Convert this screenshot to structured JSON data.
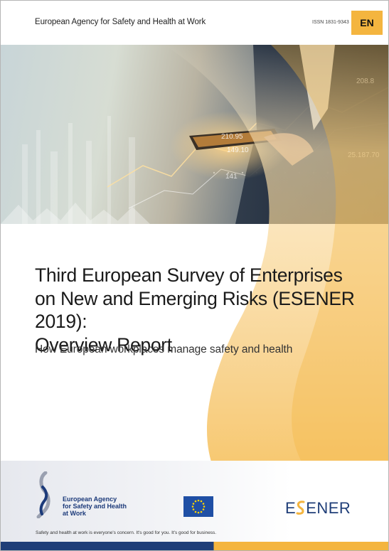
{
  "header": {
    "agency": "European Agency for Safety and Health at Work",
    "issn": "ISSN 1831-9343",
    "language": "EN"
  },
  "title_lines": [
    "Third European Survey of Enterprises",
    "on New and Emerging Risks (ESENER 2019):",
    "Overview Report"
  ],
  "subtitle": "How European workplaces manage safety and health",
  "hero": {
    "overlay_numbers": [
      "210.95",
      "149.10",
      "141",
      "208.8",
      "25.187.70"
    ]
  },
  "footer": {
    "logo_lines": [
      "European Agency",
      "for Safety and Health",
      "at Work"
    ],
    "brand_prefix": "E",
    "brand_suffix": "ENER",
    "tagline": "Safety and health at work is everyone's concern. It's good for you. It's good for business."
  },
  "colors": {
    "accent_orange": "#f4b53f",
    "navy": "#1f3e78",
    "eu_blue": "#1f4fa5"
  }
}
